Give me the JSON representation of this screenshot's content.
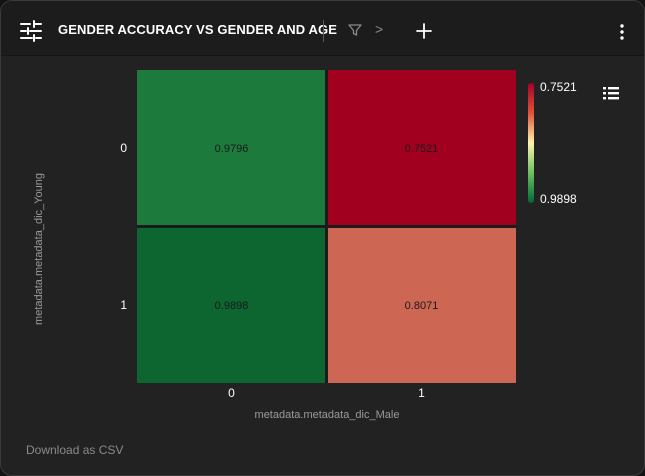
{
  "header": {
    "title": "GENDER ACCURACY VS GENDER AND AGE",
    "settings_icon": "sliders-icon",
    "filter_icon": "filter-icon",
    "breadcrumb_separator": ">",
    "add_icon": "plus-icon",
    "menu_icon": "vertical-dots-icon"
  },
  "legend_toggle_icon": "list-icon",
  "chart_data": {
    "type": "heatmap",
    "title": "",
    "xlabel": "metadata.metadata_dic_Male",
    "ylabel": "metadata.metadata_dic_Young",
    "x_categories": [
      "0",
      "1"
    ],
    "y_categories": [
      "0",
      "1"
    ],
    "values": [
      [
        0.9796,
        0.7521
      ],
      [
        0.9898,
        0.8071
      ]
    ],
    "value_labels": [
      [
        "0.9796",
        "0.7521"
      ],
      [
        "0.9898",
        "0.8071"
      ]
    ],
    "colorbar": {
      "min_label": "0.7521",
      "max_label": "0.9898",
      "min": 0.7521,
      "max": 0.9898,
      "colors": {
        "low": "#a50026",
        "mid": "#fff3ad",
        "high": "#006837"
      }
    },
    "cell_colors": [
      [
        "#1d7a3d",
        "#a1001f"
      ],
      [
        "#0d6530",
        "#cd6652"
      ]
    ]
  },
  "footer": {
    "download_label": "Download as CSV"
  }
}
